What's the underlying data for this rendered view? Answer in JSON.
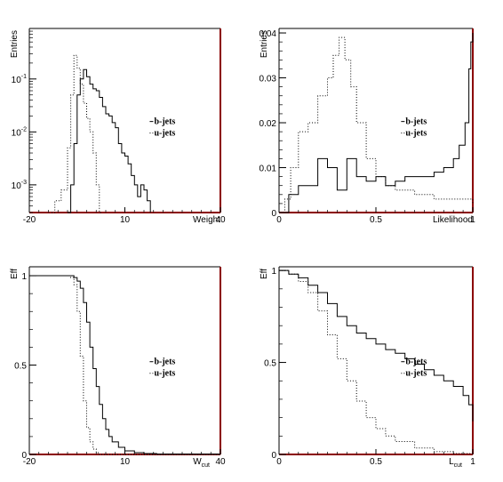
{
  "chart_data": [
    {
      "type": "line",
      "panel": "top-left",
      "xlabel": "Weight",
      "ylabel": "Entries",
      "x_ticks": [
        "-20",
        "10",
        "40"
      ],
      "y_ticks": [
        "10^-3",
        "10^-2",
        "10^-1"
      ],
      "xlim": [
        -20,
        40
      ],
      "ylim": [
        0.0003,
        0.9
      ],
      "y_scale": "log",
      "legend": [
        "b-jets",
        "u-jets"
      ],
      "legend_position": "right-middle",
      "series": [
        {
          "name": "b-jets",
          "style": "solid",
          "x": [
            -8,
            -7,
            -6,
            -5,
            -4,
            -3,
            -2,
            -1,
            0,
            1,
            2,
            3,
            4,
            5,
            6,
            7,
            8,
            9,
            10,
            11,
            12,
            13,
            14,
            15,
            16,
            17,
            18
          ],
          "y": [
            0.0003,
            0.001,
            0.006,
            0.05,
            0.1,
            0.15,
            0.11,
            0.08,
            0.065,
            0.06,
            0.045,
            0.03,
            0.022,
            0.02,
            0.015,
            0.012,
            0.006,
            0.004,
            0.0035,
            0.0025,
            0.0015,
            0.001,
            0.0006,
            0.001,
            0.0008,
            0.0005,
            0.0003
          ]
        },
        {
          "name": "u-jets",
          "style": "dotted",
          "x": [
            -13,
            -12,
            -10,
            -8,
            -7,
            -6,
            -5,
            -4,
            -3,
            -2,
            -1,
            0,
            1,
            2,
            3
          ],
          "y": [
            0.0003,
            0.0005,
            0.0008,
            0.005,
            0.05,
            0.28,
            0.16,
            0.08,
            0.035,
            0.018,
            0.01,
            0.004,
            0.001,
            0.0003,
            0.0003
          ]
        }
      ]
    },
    {
      "type": "line",
      "panel": "top-right",
      "xlabel": "Likelihood",
      "ylabel": "Entries",
      "x_ticks": [
        "0",
        "0.5",
        "1"
      ],
      "y_ticks": [
        "0",
        "0.01",
        "0.02",
        "0.03",
        "0.04"
      ],
      "xlim": [
        0,
        1
      ],
      "ylim": [
        0,
        0.041
      ],
      "y_scale": "linear",
      "legend": [
        "b-jets",
        "u-jets"
      ],
      "legend_position": "right-middle",
      "series": [
        {
          "name": "b-jets",
          "style": "solid",
          "x": [
            0.0,
            0.05,
            0.1,
            0.15,
            0.2,
            0.25,
            0.3,
            0.35,
            0.4,
            0.45,
            0.5,
            0.55,
            0.6,
            0.65,
            0.7,
            0.75,
            0.8,
            0.85,
            0.9,
            0.93,
            0.96,
            0.98,
            0.99,
            1.0
          ],
          "y": [
            0.0,
            0.004,
            0.006,
            0.006,
            0.012,
            0.01,
            0.005,
            0.012,
            0.008,
            0.007,
            0.008,
            0.006,
            0.007,
            0.008,
            0.008,
            0.008,
            0.009,
            0.01,
            0.012,
            0.015,
            0.02,
            0.032,
            0.038,
            0.04
          ]
        },
        {
          "name": "u-jets",
          "style": "dotted",
          "x": [
            0.0,
            0.03,
            0.06,
            0.1,
            0.15,
            0.2,
            0.25,
            0.28,
            0.31,
            0.34,
            0.37,
            0.4,
            0.45,
            0.5,
            0.55,
            0.6,
            0.7,
            0.8,
            0.9,
            1.0
          ],
          "y": [
            0.0,
            0.003,
            0.01,
            0.018,
            0.02,
            0.026,
            0.03,
            0.035,
            0.039,
            0.034,
            0.028,
            0.02,
            0.012,
            0.008,
            0.006,
            0.005,
            0.004,
            0.003,
            0.003,
            0.002
          ]
        }
      ]
    },
    {
      "type": "line",
      "panel": "bottom-left",
      "xlabel": "W_cut",
      "ylabel": "Eff",
      "x_ticks": [
        "-20",
        "10",
        "40"
      ],
      "y_ticks": [
        "0",
        "0.5",
        "1"
      ],
      "xlim": [
        -20,
        40
      ],
      "ylim": [
        0,
        1.05
      ],
      "y_scale": "linear",
      "legend": [
        "b-jets",
        "u-jets"
      ],
      "legend_position": "right-middle",
      "series": [
        {
          "name": "b-jets",
          "style": "solid",
          "x": [
            -20,
            -7,
            -6,
            -5,
            -4,
            -3,
            -2,
            -1,
            0,
            1,
            2,
            3,
            4,
            5,
            6,
            8,
            10,
            13,
            16,
            20,
            40
          ],
          "y": [
            1.0,
            1.0,
            0.99,
            0.97,
            0.93,
            0.85,
            0.74,
            0.6,
            0.48,
            0.38,
            0.28,
            0.2,
            0.14,
            0.1,
            0.07,
            0.04,
            0.02,
            0.01,
            0.005,
            0.002,
            0.0
          ]
        },
        {
          "name": "u-jets",
          "style": "dotted",
          "x": [
            -20,
            -8,
            -7,
            -6,
            -5,
            -4,
            -3,
            -2,
            -1,
            0,
            1,
            2,
            40
          ],
          "y": [
            1.0,
            1.0,
            0.99,
            0.95,
            0.8,
            0.55,
            0.3,
            0.15,
            0.07,
            0.03,
            0.01,
            0.0,
            0.0
          ]
        }
      ]
    },
    {
      "type": "line",
      "panel": "bottom-right",
      "xlabel": "L_cut",
      "ylabel": "Eff",
      "x_ticks": [
        "0",
        "0.5",
        "1"
      ],
      "y_ticks": [
        "0",
        "0.5",
        "1"
      ],
      "xlim": [
        0,
        1
      ],
      "ylim": [
        0,
        1.02
      ],
      "y_scale": "linear",
      "legend": [
        "b-jets",
        "u-jets"
      ],
      "legend_position": "right-middle",
      "series": [
        {
          "name": "b-jets",
          "style": "solid",
          "x": [
            0.0,
            0.05,
            0.1,
            0.15,
            0.2,
            0.25,
            0.3,
            0.35,
            0.4,
            0.45,
            0.5,
            0.55,
            0.6,
            0.65,
            0.7,
            0.75,
            0.8,
            0.85,
            0.9,
            0.95,
            0.98,
            1.0
          ],
          "y": [
            1.0,
            0.98,
            0.96,
            0.92,
            0.88,
            0.82,
            0.75,
            0.7,
            0.66,
            0.63,
            0.6,
            0.57,
            0.55,
            0.52,
            0.49,
            0.46,
            0.43,
            0.4,
            0.37,
            0.32,
            0.27,
            0.18
          ]
        },
        {
          "name": "u-jets",
          "style": "dotted",
          "x": [
            0.0,
            0.05,
            0.1,
            0.15,
            0.2,
            0.25,
            0.3,
            0.35,
            0.4,
            0.45,
            0.5,
            0.55,
            0.6,
            0.7,
            0.8,
            0.9,
            1.0
          ],
          "y": [
            1.0,
            0.98,
            0.94,
            0.88,
            0.78,
            0.65,
            0.52,
            0.4,
            0.29,
            0.2,
            0.14,
            0.1,
            0.07,
            0.035,
            0.015,
            0.005,
            0.0
          ]
        }
      ]
    }
  ]
}
